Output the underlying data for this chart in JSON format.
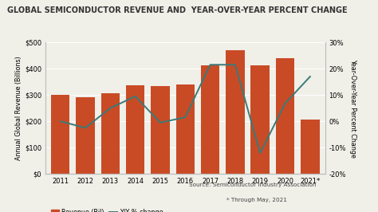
{
  "years": [
    "2011",
    "2012",
    "2013",
    "2014",
    "2015",
    "2016",
    "2017",
    "2018",
    "2019",
    "2020",
    "2021*"
  ],
  "revenue": [
    299,
    292,
    306,
    336,
    335,
    339,
    412,
    469,
    412,
    440,
    207
  ],
  "yoy_change": [
    0.0,
    -2.5,
    5.0,
    9.5,
    -0.5,
    1.5,
    21.5,
    21.5,
    -12.1,
    6.8,
    17.0
  ],
  "bar_color": "#C94B25",
  "line_color": "#3A7A7A",
  "title": "GLOBAL SEMICONDUCTOR REVENUE AND  YEAR-OVER-YEAR PERCENT CHANGE",
  "ylabel_left": "Annual Global Revenue (Billions)",
  "ylabel_right": "Year-Over-Year Percent Change",
  "ylim_left": [
    0,
    500
  ],
  "ylim_right": [
    -20,
    30
  ],
  "yticks_left": [
    0,
    100,
    200,
    300,
    400,
    500
  ],
  "yticks_left_labels": [
    "$0",
    "$100",
    "$200",
    "$300",
    "$400",
    "$500"
  ],
  "yticks_right": [
    -20,
    -10,
    0,
    10,
    20,
    30
  ],
  "yticks_right_labels": [
    "-20%",
    "-10%",
    "0%",
    "10%",
    "20%",
    "30%"
  ],
  "source_text": "Source: Semiconductor Industry Association",
  "note_text": "* Through May, 2021",
  "legend_revenue": "Revenue (Bil)",
  "legend_yoy": "Y/Y % change",
  "bg_color": "#F0EFE8",
  "grid_color": "#FFFFFF",
  "spine_color": "#BBBBBB",
  "title_fontsize": 7.0,
  "axis_label_fontsize": 5.8,
  "tick_fontsize": 6.0,
  "source_fontsize": 5.2,
  "legend_fontsize": 5.8
}
